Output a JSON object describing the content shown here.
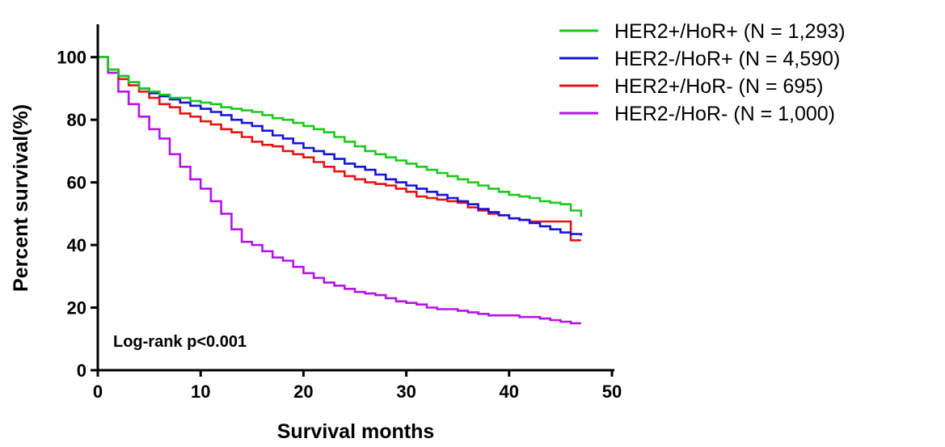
{
  "chart_data": {
    "type": "line",
    "step": true,
    "xlabel": "Survival months",
    "ylabel": "Percent survival(%)",
    "xlim": [
      0,
      50
    ],
    "ylim": [
      0,
      110
    ],
    "xticks": [
      0,
      10,
      20,
      30,
      40,
      50
    ],
    "yticks": [
      0,
      20,
      40,
      60,
      80,
      100
    ],
    "grid": false,
    "legend_position": "top-right",
    "annotation": "Log-rank p<0.001",
    "series": [
      {
        "name": "HER2+/HoR+ (N = 1,293)",
        "color": "#1ec81e",
        "x": [
          0,
          1,
          2,
          3,
          4,
          5,
          6,
          7,
          8,
          9,
          10,
          11,
          12,
          13,
          14,
          15,
          16,
          17,
          18,
          19,
          20,
          21,
          22,
          23,
          24,
          25,
          26,
          27,
          28,
          29,
          30,
          31,
          32,
          33,
          34,
          35,
          36,
          37,
          38,
          39,
          40,
          41,
          42,
          43,
          44,
          45,
          46,
          47
        ],
        "y": [
          100,
          96,
          94,
          92,
          90,
          89,
          88,
          87,
          87,
          86,
          85.5,
          85,
          84,
          83.5,
          83,
          82.5,
          81.5,
          80.5,
          80,
          79,
          78,
          77,
          76,
          74.5,
          73,
          71.5,
          70,
          69,
          68,
          67,
          66,
          65,
          64,
          63,
          62,
          61,
          60,
          59,
          58,
          57,
          56,
          55.5,
          55,
          54,
          53.5,
          53,
          51,
          49
        ]
      },
      {
        "name": "HER2-/HoR+ (N = 4,590)",
        "color": "#1414dc",
        "x": [
          0,
          1,
          2,
          3,
          4,
          5,
          6,
          7,
          8,
          9,
          10,
          11,
          12,
          13,
          14,
          15,
          16,
          17,
          18,
          19,
          20,
          21,
          22,
          23,
          24,
          25,
          26,
          27,
          28,
          29,
          30,
          31,
          32,
          33,
          34,
          35,
          36,
          37,
          38,
          39,
          40,
          41,
          42,
          43,
          44,
          45,
          46,
          47
        ],
        "y": [
          100,
          96,
          94,
          92,
          90,
          88.5,
          87.5,
          86.5,
          85.5,
          84.5,
          83.5,
          82.5,
          81.5,
          80,
          79,
          78,
          76.5,
          75,
          74,
          72.5,
          71,
          70,
          69,
          67.5,
          66,
          65,
          64,
          62.5,
          61,
          60,
          59,
          58,
          57,
          56,
          55,
          54,
          53,
          51.5,
          50.5,
          49.5,
          48.5,
          48,
          47,
          46,
          45,
          44,
          43.5,
          43
        ]
      },
      {
        "name": "HER2+/HoR- (N = 695)",
        "color": "#e61414",
        "x": [
          0,
          1,
          2,
          3,
          4,
          5,
          6,
          7,
          8,
          9,
          10,
          11,
          12,
          13,
          14,
          15,
          16,
          17,
          18,
          19,
          20,
          21,
          22,
          23,
          24,
          25,
          26,
          27,
          28,
          29,
          30,
          31,
          32,
          33,
          34,
          35,
          36,
          37,
          38,
          39,
          40,
          41,
          42,
          43,
          44,
          45,
          46,
          47
        ],
        "y": [
          100,
          96,
          93,
          91,
          89,
          87,
          85,
          84,
          82,
          81,
          79.5,
          78.5,
          77,
          76,
          74.5,
          73,
          72,
          71.5,
          70,
          69,
          68,
          66.5,
          65,
          63.5,
          62,
          61,
          60,
          59.5,
          59,
          58,
          57,
          55.5,
          55,
          54.5,
          54,
          53.5,
          52,
          51,
          50,
          49.5,
          48.5,
          48,
          47.5,
          47.5,
          47.5,
          47.5,
          41.5,
          41.5
        ]
      },
      {
        "name": "HER2-/HoR- (N = 1,000)",
        "color": "#b414e6",
        "x": [
          0,
          1,
          2,
          3,
          4,
          5,
          6,
          7,
          8,
          9,
          10,
          11,
          12,
          13,
          14,
          15,
          16,
          17,
          18,
          19,
          20,
          21,
          22,
          23,
          24,
          25,
          26,
          27,
          28,
          29,
          30,
          31,
          32,
          33,
          34,
          35,
          36,
          37,
          38,
          39,
          40,
          41,
          42,
          43,
          44,
          45,
          46,
          47
        ],
        "y": [
          100,
          95,
          89,
          85,
          81,
          77,
          74,
          69,
          65,
          61,
          58,
          54,
          50,
          45,
          41,
          40,
          38,
          36,
          35,
          33,
          31,
          29.5,
          28,
          27,
          26,
          25,
          24.5,
          24,
          23,
          22,
          21.5,
          21,
          20,
          19.5,
          19.5,
          19,
          18.5,
          18,
          17.5,
          17.5,
          17.5,
          17,
          17,
          16.5,
          16,
          15.5,
          15,
          15
        ]
      }
    ]
  }
}
